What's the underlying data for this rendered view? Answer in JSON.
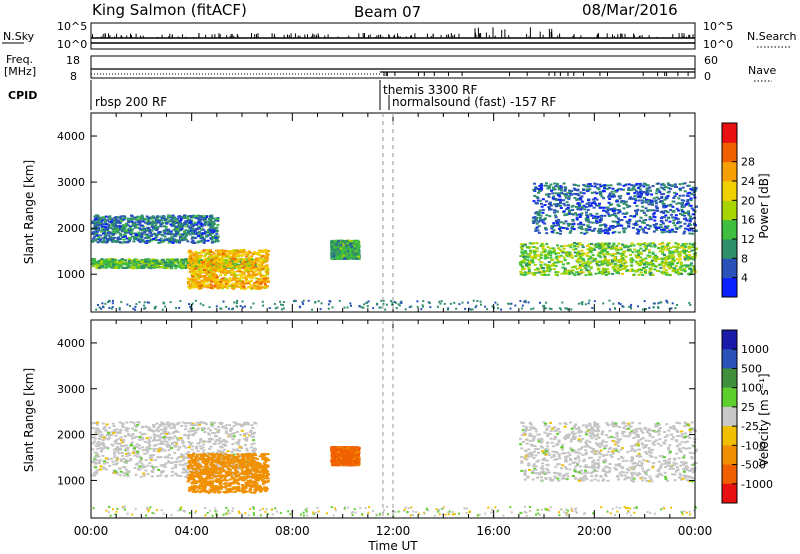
{
  "header": {
    "station": "King Salmon (fitACF)",
    "beam": "Beam 07",
    "date": "08/Mar/2016"
  },
  "top_panels": {
    "nsky_label": "N.Sky",
    "nsearch_label": "N.Search",
    "freq_label_1": "Freq.",
    "freq_label_2": "[MHz]",
    "nave_label": "Nave",
    "cpid_label": "CPID",
    "nsky_ticks": [
      "10^5",
      "10^0"
    ],
    "nsearch_ticks": [
      "10^5",
      "10^0"
    ],
    "freq_ticks": [
      "18",
      "8"
    ],
    "nave_ticks": [
      "60",
      "0"
    ],
    "cpid_entries": [
      {
        "label": "rbsp 200 RF",
        "start": 0.0
      },
      {
        "label": "themis 3300 RF",
        "start": 11.6
      },
      {
        "label": "normalsound (fast) -157 RF",
        "start": 12.0
      }
    ]
  },
  "chart_data": [
    {
      "type": "heatmap",
      "title": "",
      "xlabel": "Time UT",
      "ylabel": "Slant Range [km]",
      "xlim": [
        0,
        24
      ],
      "ylim": [
        180,
        4500
      ],
      "x_ticks": [
        "00:00",
        "04:00",
        "08:00",
        "12:00",
        "16:00",
        "20:00",
        "00:00"
      ],
      "y_ticks": [
        1000,
        2000,
        3000,
        4000
      ],
      "colorbar": {
        "label": "Power [dB]",
        "ticks": [
          4,
          8,
          12,
          16,
          20,
          24,
          28
        ],
        "colors": [
          "#0a20ff",
          "#2a52b8",
          "#2f8f6a",
          "#3fbf3f",
          "#a8d400",
          "#f0d000",
          "#f5a000",
          "#f06000",
          "#e81010"
        ]
      },
      "features": [
        {
          "name": "lower band 0-6h",
          "t": [
            0.0,
            6.5
          ],
          "range": [
            1150,
            1350
          ],
          "level": 12
        },
        {
          "name": "upper band 0-5h",
          "t": [
            0.0,
            5.0
          ],
          "range": [
            1700,
            2300
          ],
          "level": 6
        },
        {
          "name": "strong echo 4-7h",
          "t": [
            3.8,
            7.0
          ],
          "range": [
            700,
            1550
          ],
          "level": 22
        },
        {
          "name": "patch 10h",
          "t": [
            9.5,
            10.6
          ],
          "range": [
            1350,
            1750
          ],
          "level": 10
        },
        {
          "name": "evening band 17-24h",
          "t": [
            17.0,
            24.0
          ],
          "range": [
            1000,
            1700
          ],
          "level": 14
        },
        {
          "name": "evening upper 17-24h",
          "t": [
            17.5,
            24.0
          ],
          "range": [
            1900,
            3000
          ],
          "level": 5
        }
      ]
    },
    {
      "type": "heatmap",
      "title": "",
      "xlabel": "Time UT",
      "ylabel": "Slant Range [km]",
      "xlim": [
        0,
        24
      ],
      "ylim": [
        180,
        4500
      ],
      "x_ticks": [
        "00:00",
        "04:00",
        "08:00",
        "12:00",
        "16:00",
        "20:00",
        "00:00"
      ],
      "y_ticks": [
        1000,
        2000,
        3000,
        4000
      ],
      "colorbar": {
        "label": "Velocity [m s⁻¹]",
        "ticks": [
          "1000",
          "500",
          "100",
          "25",
          "-25",
          "-100",
          "-500",
          "-1000"
        ],
        "colors": [
          "#1a1aa8",
          "#2a52b8",
          "#3f8f3f",
          "#5fcf2f",
          "#c8c8c8",
          "#f0c000",
          "#f09000",
          "#f06000",
          "#e81010"
        ]
      },
      "features": [
        {
          "name": "ground scatter 0-6h",
          "t": [
            0.0,
            6.5
          ],
          "range": [
            1100,
            2300
          ],
          "velocity": 0
        },
        {
          "name": "flow 4-7h",
          "t": [
            3.8,
            7.0
          ],
          "range": [
            750,
            1600
          ],
          "velocity": -300
        },
        {
          "name": "patch 10h",
          "t": [
            9.5,
            10.6
          ],
          "range": [
            1350,
            1750
          ],
          "velocity": -700
        },
        {
          "name": "ground scatter 17-24h",
          "t": [
            17.0,
            24.0
          ],
          "range": [
            1000,
            2300
          ],
          "velocity": 0
        }
      ]
    }
  ]
}
